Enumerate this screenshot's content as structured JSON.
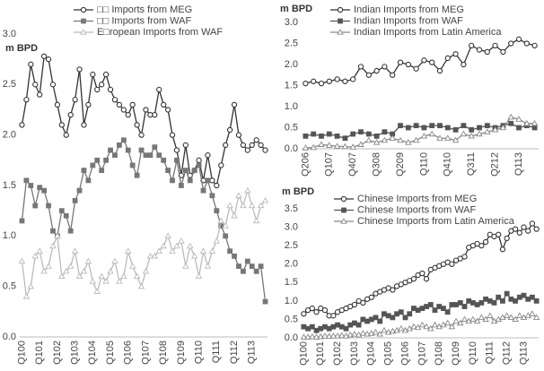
{
  "chart_data": [
    {
      "type": "line",
      "y_label": "m BPD",
      "legend": "top",
      "grid": false,
      "categories": [
        "Q100",
        null,
        null,
        null,
        "Q101",
        null,
        null,
        null,
        "Q102",
        null,
        null,
        null,
        "Q103",
        null,
        null,
        null,
        "Q104",
        null,
        null,
        null,
        "Q105",
        null,
        null,
        null,
        "Q106",
        null,
        null,
        null,
        "Q107",
        null,
        null,
        null,
        "Q108",
        null,
        null,
        null,
        "Q109",
        null,
        null,
        null,
        "Q110",
        null,
        null,
        null,
        "Q111",
        null,
        null,
        null,
        "Q112",
        null,
        null,
        null,
        "Q113",
        null,
        null,
        null
      ],
      "ylim": [
        0,
        3
      ],
      "yticks": [
        {
          "value": 0,
          "label": "0.0"
        },
        0.5,
        {
          "value": 1,
          "label": "1.0"
        },
        1.5,
        {
          "value": 2,
          "label": "2.0"
        },
        2.5,
        {
          "value": 3,
          "label": "3.0"
        }
      ],
      "series": [
        {
          "name": "□□ Imports from MEG",
          "color": "#333333",
          "marker": "circle",
          "values": [
            2.1,
            2.35,
            2.7,
            2.5,
            2.4,
            2.78,
            2.75,
            2.5,
            2.3,
            2.1,
            2.0,
            2.2,
            2.35,
            2.65,
            2.1,
            2.3,
            2.6,
            2.45,
            2.5,
            2.6,
            2.45,
            2.35,
            2.3,
            2.25,
            2.2,
            2.3,
            2.1,
            2.0,
            2.25,
            2.2,
            2.2,
            2.45,
            2.3,
            2.25,
            2.0,
            1.85,
            1.6,
            1.9,
            1.6,
            1.65,
            1.75,
            1.55,
            1.8,
            1.55,
            1.5,
            1.7,
            1.9,
            2.05,
            2.3,
            2.0,
            1.9,
            1.85,
            1.9,
            1.95,
            1.9,
            1.85
          ]
        },
        {
          "name": "□□ Imports from WAF",
          "color": "#777777",
          "marker": "square",
          "values": [
            1.15,
            1.55,
            1.5,
            1.3,
            1.48,
            1.45,
            1.3,
            1.05,
            1.0,
            1.25,
            1.2,
            1.05,
            1.35,
            1.45,
            1.65,
            1.55,
            1.7,
            1.75,
            1.65,
            1.75,
            1.85,
            1.8,
            1.9,
            1.95,
            1.85,
            1.7,
            1.6,
            1.85,
            1.8,
            1.8,
            1.88,
            1.8,
            1.75,
            1.65,
            1.55,
            1.75,
            1.5,
            1.65,
            1.55,
            1.65,
            1.7,
            1.45,
            1.55,
            1.4,
            1.25,
            1.1,
            1.0,
            0.85,
            0.8,
            0.7,
            0.65,
            0.75,
            0.7,
            0.65,
            0.7,
            0.35
          ]
        },
        {
          "name": "E□ropean Imports from WAF",
          "color": "#bbbbbb",
          "marker": "triangle",
          "values": [
            0.75,
            0.4,
            0.5,
            0.8,
            0.85,
            0.65,
            0.7,
            0.9,
            1.0,
            0.6,
            0.65,
            0.7,
            0.85,
            0.6,
            0.65,
            0.75,
            0.55,
            0.45,
            0.6,
            0.55,
            0.65,
            0.75,
            0.55,
            0.6,
            0.85,
            0.7,
            0.6,
            0.5,
            0.65,
            0.8,
            0.8,
            0.85,
            0.9,
            1.0,
            0.85,
            0.9,
            0.95,
            0.7,
            0.9,
            0.8,
            0.6,
            0.85,
            0.7,
            0.85,
            0.95,
            1.15,
            1.1,
            1.3,
            1.2,
            1.4,
            1.3,
            1.45,
            1.3,
            1.15,
            1.3,
            1.35
          ]
        }
      ]
    },
    {
      "type": "line",
      "y_label": "m BPD",
      "legend": "top",
      "grid": false,
      "categories": [
        "Q206",
        null,
        null,
        "Q107",
        null,
        null,
        "Q407",
        null,
        null,
        "Q308",
        null,
        null,
        "Q209",
        null,
        null,
        "Q110",
        null,
        null,
        "Q410",
        null,
        null,
        "Q311",
        null,
        null,
        "Q212",
        null,
        null,
        "Q113",
        null,
        null
      ],
      "ylim": [
        0,
        3
      ],
      "yticks": [
        {
          "value": 0,
          "label": "0.0"
        },
        0.5,
        {
          "value": 1,
          "label": "1.0"
        },
        1.5,
        {
          "value": 2,
          "label": "2.0"
        },
        2.5,
        {
          "value": 3,
          "label": "3.0"
        }
      ],
      "series": [
        {
          "name": "Indian Imports from MEG",
          "color": "#333333",
          "marker": "circle",
          "values": [
            1.55,
            1.6,
            1.55,
            1.6,
            1.65,
            1.6,
            1.65,
            1.95,
            1.75,
            1.85,
            1.95,
            1.75,
            2.05,
            2.0,
            1.9,
            2.1,
            2.05,
            1.85,
            2.15,
            2.25,
            2.0,
            2.45,
            2.35,
            2.3,
            2.45,
            2.3,
            2.5,
            2.6,
            2.5,
            2.45
          ]
        },
        {
          "name": "Indian Imports from WAF",
          "color": "#555555",
          "marker": "square",
          "values": [
            0.3,
            0.35,
            0.3,
            0.35,
            0.3,
            0.25,
            0.35,
            0.4,
            0.35,
            0.3,
            0.4,
            0.35,
            0.55,
            0.5,
            0.55,
            0.5,
            0.55,
            0.55,
            0.5,
            0.45,
            0.55,
            0.45,
            0.5,
            0.55,
            0.5,
            0.55,
            0.6,
            0.5,
            0.55,
            0.5
          ]
        },
        {
          "name": "Indian Imports from Latin America",
          "color": "#888888",
          "marker": "triangle",
          "values": [
            0.02,
            0.03,
            0.1,
            0.08,
            0.06,
            0.05,
            0.04,
            0.1,
            0.2,
            0.15,
            0.2,
            0.25,
            0.2,
            0.15,
            0.2,
            0.3,
            0.35,
            0.25,
            0.25,
            0.2,
            0.35,
            0.3,
            0.35,
            0.4,
            0.45,
            0.5,
            0.75,
            0.7,
            0.6,
            0.6
          ]
        }
      ]
    },
    {
      "type": "line",
      "y_label": "m BPD",
      "legend": "top",
      "grid": false,
      "categories": [
        "Q100",
        null,
        null,
        null,
        "Q101",
        null,
        null,
        null,
        "Q102",
        null,
        null,
        null,
        "Q103",
        null,
        null,
        null,
        "Q104",
        null,
        null,
        null,
        "Q105",
        null,
        null,
        null,
        "Q106",
        null,
        null,
        null,
        "Q107",
        null,
        null,
        null,
        "Q108",
        null,
        null,
        null,
        "Q109",
        null,
        null,
        null,
        "Q110",
        null,
        null,
        null,
        "Q111",
        null,
        null,
        null,
        "Q112",
        null,
        null,
        null,
        "Q113",
        null,
        null,
        null
      ],
      "ylim": [
        0,
        3.5
      ],
      "yticks": [
        {
          "value": 0,
          "label": "0.0"
        },
        0.5,
        {
          "value": 1,
          "label": "1.0"
        },
        1.5,
        {
          "value": 2,
          "label": "2.0"
        },
        2.5,
        {
          "value": 3,
          "label": "3.0"
        },
        3.5
      ],
      "series": [
        {
          "name": "Chinese Imports from MEG",
          "color": "#333333",
          "marker": "circle",
          "values": [
            0.65,
            0.75,
            0.8,
            0.7,
            0.8,
            0.75,
            0.6,
            0.6,
            0.7,
            0.75,
            0.8,
            0.85,
            0.9,
            1.0,
            0.95,
            1.05,
            1.1,
            1.2,
            1.25,
            1.3,
            1.35,
            1.3,
            1.4,
            1.45,
            1.5,
            1.55,
            1.6,
            1.7,
            1.75,
            1.6,
            1.85,
            1.9,
            1.95,
            2.0,
            2.05,
            2.0,
            2.1,
            2.15,
            2.2,
            2.45,
            2.5,
            2.55,
            2.5,
            2.6,
            2.8,
            2.75,
            2.8,
            2.4,
            2.7,
            2.9,
            2.95,
            2.85,
            3.0,
            2.9,
            3.1,
            2.95
          ]
        },
        {
          "name": "Chinese Imports from WAF",
          "color": "#555555",
          "marker": "square",
          "values": [
            0.3,
            0.25,
            0.3,
            0.2,
            0.25,
            0.3,
            0.25,
            0.3,
            0.35,
            0.3,
            0.25,
            0.35,
            0.4,
            0.35,
            0.5,
            0.45,
            0.5,
            0.55,
            0.45,
            0.65,
            0.6,
            0.55,
            0.65,
            0.7,
            0.55,
            0.65,
            0.8,
            0.75,
            0.8,
            0.85,
            0.9,
            0.75,
            0.85,
            0.8,
            0.7,
            0.9,
            0.9,
            0.95,
            0.85,
            1.0,
            0.95,
            0.9,
            0.95,
            1.05,
            1.0,
            0.95,
            1.1,
            1.0,
            1.2,
            1.05,
            1.0,
            1.1,
            1.15,
            1.05,
            1.1,
            1.0
          ]
        },
        {
          "name": "Chinese Imports from Latin America",
          "color": "#888888",
          "marker": "triangle",
          "values": [
            0.02,
            0.02,
            0.03,
            0.02,
            0.03,
            0.05,
            0.04,
            0.05,
            0.05,
            0.06,
            0.05,
            0.08,
            0.1,
            0.08,
            0.12,
            0.1,
            0.12,
            0.15,
            0.1,
            0.2,
            0.15,
            0.18,
            0.2,
            0.25,
            0.2,
            0.25,
            0.3,
            0.28,
            0.35,
            0.3,
            0.25,
            0.35,
            0.3,
            0.35,
            0.4,
            0.3,
            0.45,
            0.4,
            0.5,
            0.45,
            0.5,
            0.45,
            0.55,
            0.5,
            0.6,
            0.45,
            0.5,
            0.55,
            0.6,
            0.55,
            0.5,
            0.6,
            0.55,
            0.6,
            0.65,
            0.55
          ]
        }
      ]
    }
  ]
}
